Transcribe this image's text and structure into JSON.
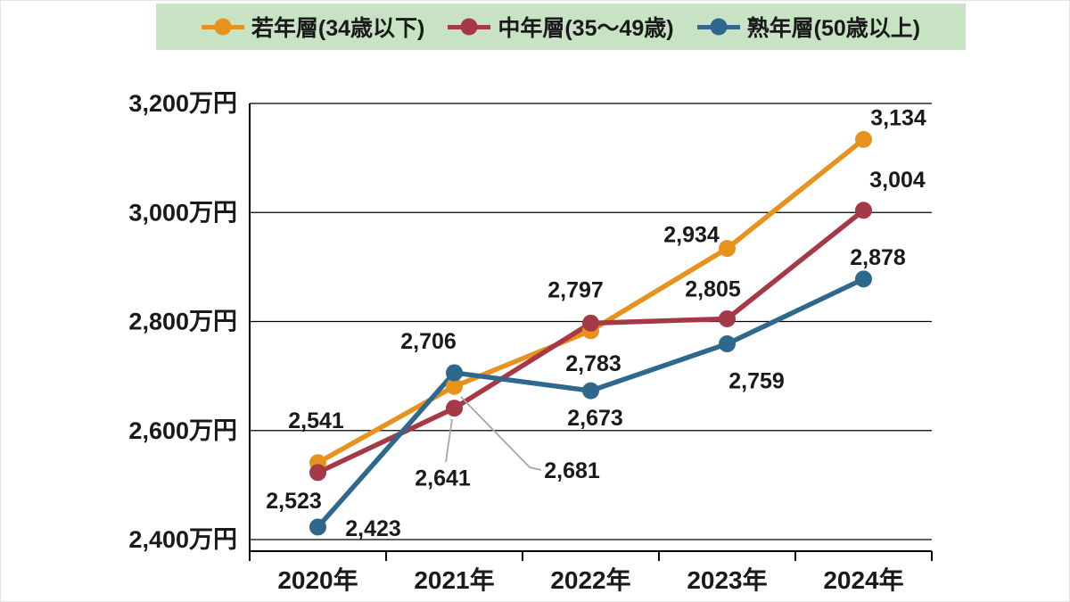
{
  "colors": {
    "legend_bg": "#C8E3C4",
    "text": "#1A1A1A",
    "axis": "#000000",
    "grid": "#000000",
    "callout": "#A6A6A6",
    "background": "#FFFFFF"
  },
  "chart_data": {
    "type": "line",
    "categories": [
      "2020年",
      "2021年",
      "2022年",
      "2023年",
      "2024年"
    ],
    "series": [
      {
        "name": "若年層(34歳以下)",
        "color": "#E8921E",
        "values": [
          2541,
          2681,
          2783,
          2934,
          3134
        ]
      },
      {
        "name": "中年層(35〜49歳)",
        "color": "#A63948",
        "values": [
          2523,
          2641,
          2797,
          2805,
          3004
        ]
      },
      {
        "name": "熟年層(50歳以上)",
        "color": "#2E688C",
        "values": [
          2423,
          2706,
          2673,
          2759,
          2878
        ]
      }
    ],
    "unit_suffix": "万円",
    "y_ticks": [
      2400,
      2600,
      2800,
      3000,
      3200
    ],
    "ylim": [
      2400,
      3200
    ],
    "grid": true,
    "legend_position": "top",
    "data_labels": true,
    "xlabel": "",
    "ylabel": ""
  }
}
